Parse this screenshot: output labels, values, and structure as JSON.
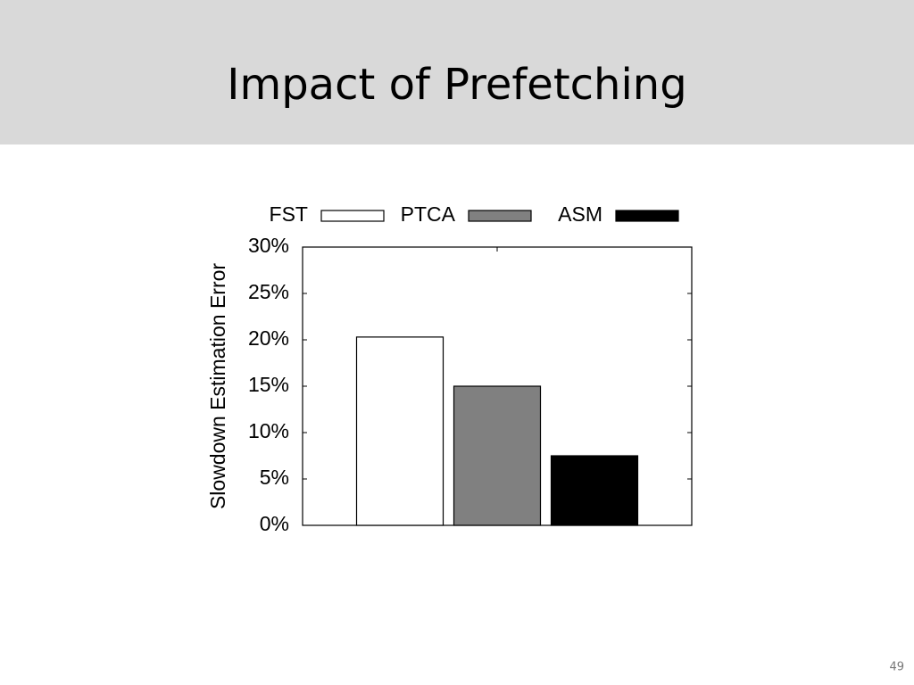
{
  "slide": {
    "title": "Impact of Prefetching",
    "page_number": "49"
  },
  "chart_data": {
    "type": "bar",
    "ylabel": "Slowdown Estimation Error",
    "categories": [
      null
    ],
    "series": [
      {
        "name": "FST",
        "color": "#ffffff",
        "values": [
          20.3
        ]
      },
      {
        "name": "PTCA",
        "color": "#808080",
        "values": [
          15
        ]
      },
      {
        "name": "ASM",
        "color": "#000000",
        "values": [
          7.5
        ]
      }
    ],
    "ylim": [
      0,
      30
    ],
    "yticks": [
      {
        "value": 0,
        "label": "0%"
      },
      {
        "value": 5,
        "label": "5%"
      },
      {
        "value": 10,
        "label": "10%"
      },
      {
        "value": 15,
        "label": "15%"
      },
      {
        "value": 20,
        "label": "20%"
      },
      {
        "value": 25,
        "label": "25%"
      },
      {
        "value": 30,
        "label": "30%"
      }
    ],
    "grid": false,
    "legend": "top"
  }
}
